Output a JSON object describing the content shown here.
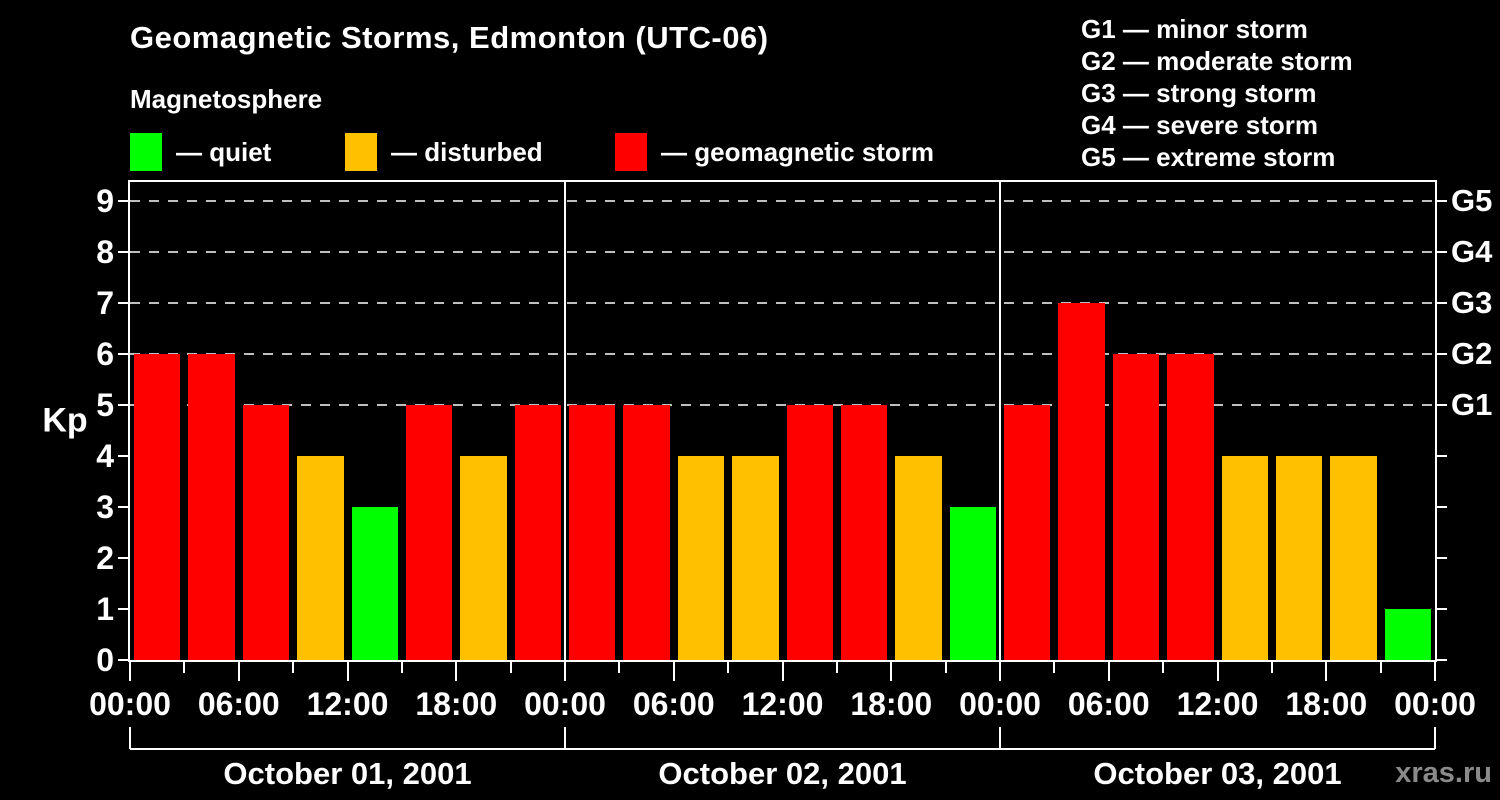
{
  "title": "Geomagnetic Storms, Edmonton (UTC-06)",
  "subtitle": "Magnetosphere",
  "legend": {
    "items": [
      {
        "key": "quiet",
        "label": "— quiet",
        "color": "#00ff00"
      },
      {
        "key": "disturbed",
        "label": "— disturbed",
        "color": "#ffc000"
      },
      {
        "key": "storm",
        "label": "— geomagnetic storm",
        "color": "#ff0000"
      }
    ]
  },
  "g_scale_legend": {
    "items": [
      "G1 — minor storm",
      "G2 — moderate storm",
      "G3 — strong storm",
      "G4 — severe storm",
      "G5 — extreme storm"
    ]
  },
  "watermark": "xras.ru",
  "palette": {
    "background": "#000000",
    "axis": "#ffffff",
    "gridline": "#bfbfbf",
    "text": "#ffffff",
    "watermark": "#8a8a8a"
  },
  "chart_data": {
    "type": "bar",
    "title": "Geomagnetic Storms, Edmonton (UTC-06)",
    "ylabel": "Kp",
    "ylim": [
      0,
      9.4
    ],
    "yticks": [
      0,
      1,
      2,
      3,
      4,
      5,
      6,
      7,
      8,
      9
    ],
    "gridlines_at_kp": [
      5,
      6,
      7,
      8,
      9
    ],
    "grid_style": "dashed horizontal lines at storm levels only",
    "legend_position": "top",
    "right_axis_labels": [
      {
        "kp": 5,
        "label": "G1"
      },
      {
        "kp": 6,
        "label": "G2"
      },
      {
        "kp": 7,
        "label": "G3"
      },
      {
        "kp": 8,
        "label": "G4"
      },
      {
        "kp": 9,
        "label": "G5"
      }
    ],
    "x_tick_labels": [
      "00:00",
      "06:00",
      "12:00",
      "18:00",
      "00:00",
      "06:00",
      "12:00",
      "18:00",
      "00:00",
      "06:00",
      "12:00",
      "18:00",
      "00:00"
    ],
    "hours_per_bar": 3,
    "color_rule": {
      "quiet": "Kp 0–3",
      "disturbed": "Kp 4",
      "storm": "Kp 5–9"
    },
    "colors": {
      "quiet": "#00ff00",
      "disturbed": "#ffc000",
      "storm": "#ff0000"
    },
    "days": [
      {
        "date": "October 01, 2001",
        "kp_values": [
          6,
          6,
          5,
          4,
          3,
          5,
          4,
          5
        ]
      },
      {
        "date": "October 02, 2001",
        "kp_values": [
          5,
          5,
          4,
          4,
          5,
          5,
          4,
          3
        ]
      },
      {
        "date": "October 03, 2001",
        "kp_values": [
          5,
          7,
          6,
          6,
          4,
          4,
          4,
          1
        ]
      }
    ]
  }
}
